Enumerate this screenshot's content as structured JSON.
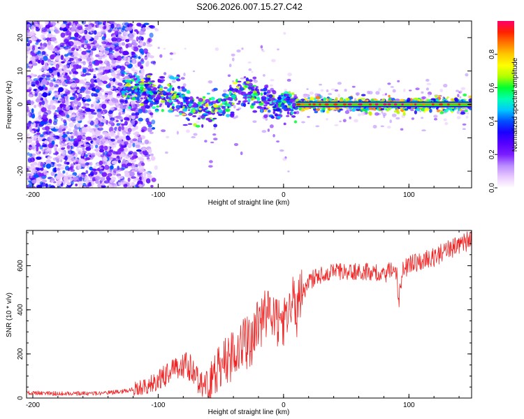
{
  "title": "S206.2026.007.15.27.C42",
  "colormap_stops": [
    "#ffffff",
    "#e9c9ff",
    "#b98cff",
    "#7b1dff",
    "#5500ff",
    "#1a00ff",
    "#0050ff",
    "#00c8ff",
    "#00ffb0",
    "#00ff30",
    "#b0ff00",
    "#ffff00",
    "#ffc800",
    "#ff7800",
    "#ff2000",
    "#ff006a"
  ],
  "chart_data": [
    {
      "type": "heatmap",
      "title": "S206.2026.007.15.27.C42",
      "xlabel": "Height of straight line (km)",
      "ylabel": "Frequency (Hz)",
      "xlim": [
        -205,
        150
      ],
      "ylim": [
        -25,
        25
      ],
      "xticks": [
        -200,
        -100,
        0,
        100
      ],
      "xtick_labels": [
        "-200",
        "-100",
        "0",
        "100"
      ],
      "yticks": [
        -20,
        -10,
        0,
        10,
        20
      ],
      "ytick_labels": [
        "-20",
        "-10",
        "0",
        "10",
        "20"
      ],
      "colorbar": {
        "label": "Normalized spectral amplitude",
        "range": [
          0,
          1
        ],
        "ticks": [
          0,
          0.2,
          0.4,
          0.6,
          0.8
        ],
        "tick_labels": [
          "0.0",
          "0.2",
          "0.4",
          "0.6",
          "0.8"
        ]
      },
      "ridge": {
        "x": [
          -125,
          -110,
          -100,
          -90,
          -85,
          -80,
          -75,
          -70,
          -60,
          -50,
          -45,
          -40,
          -35,
          -30,
          -25,
          -20,
          -15,
          -10,
          -5,
          0,
          3,
          5,
          8,
          10,
          20,
          50,
          100,
          150
        ],
        "y": [
          4.5,
          4,
          3,
          2.5,
          2,
          0.5,
          -1,
          -1.5,
          -1.5,
          -1,
          1,
          2,
          3.5,
          4,
          3.5,
          2.5,
          1,
          0,
          -0.5,
          0.5,
          1,
          0.5,
          -0.2,
          0,
          0,
          0,
          0,
          0
        ]
      }
    },
    {
      "type": "line",
      "xlabel": "Height of straight line (km)",
      "ylabel": "SNR (10 * v/v)",
      "xlim": [
        -205,
        150
      ],
      "ylim": [
        0,
        760
      ],
      "xticks": [
        -200,
        -100,
        0,
        100
      ],
      "xtick_labels": [
        "-200",
        "-100",
        "0",
        "100"
      ],
      "yticks": [
        0,
        200,
        400,
        600
      ],
      "ytick_labels": [
        "0",
        "200",
        "400",
        "600"
      ],
      "series": [
        {
          "name": "SNR",
          "color": "#ee2222",
          "x": [
            -205,
            -180,
            -150,
            -130,
            -120,
            -110,
            -100,
            -95,
            -90,
            -85,
            -80,
            -75,
            -70,
            -65,
            -60,
            -55,
            -50,
            -45,
            -40,
            -35,
            -30,
            -25,
            -20,
            -15,
            -10,
            -5,
            0,
            5,
            8,
            10,
            12,
            15,
            20,
            25,
            30,
            35,
            40,
            50,
            60,
            70,
            80,
            85,
            90,
            92,
            95,
            100,
            110,
            120,
            130,
            140,
            150
          ],
          "values": [
            25,
            20,
            22,
            28,
            40,
            55,
            80,
            100,
            115,
            125,
            140,
            145,
            100,
            60,
            40,
            90,
            170,
            190,
            190,
            230,
            250,
            260,
            330,
            370,
            420,
            350,
            330,
            410,
            440,
            370,
            450,
            480,
            520,
            550,
            560,
            570,
            575,
            575,
            575,
            570,
            565,
            570,
            575,
            450,
            585,
            600,
            620,
            640,
            665,
            700,
            715
          ]
        }
      ]
    }
  ]
}
